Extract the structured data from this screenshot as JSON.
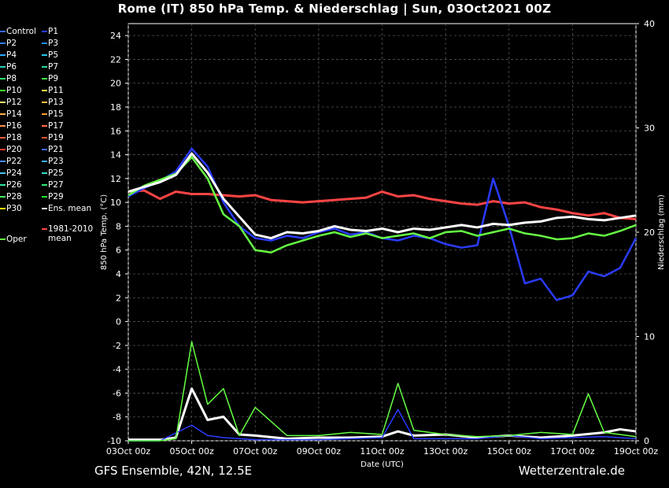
{
  "title": "Rome  (IT)  850 hPa Temp. & Niederschlag | Sun, 03Oct2021 00Z",
  "footer": {
    "left": "GFS Ensemble, 42N, 12.5E",
    "right": "Wetterzentrale.de"
  },
  "legend": [
    {
      "label": "Control",
      "color": "#3a6bff"
    },
    {
      "label": "P1",
      "color": "#2a3cff"
    },
    {
      "label": "P2",
      "color": "#2f7cff"
    },
    {
      "label": "P3",
      "color": "#1e90ff"
    },
    {
      "label": "P4",
      "color": "#2aa8ff"
    },
    {
      "label": "P5",
      "color": "#1cc4e6"
    },
    {
      "label": "P6",
      "color": "#22d2b8"
    },
    {
      "label": "P7",
      "color": "#22dd99"
    },
    {
      "label": "P8",
      "color": "#2ee070"
    },
    {
      "label": "P9",
      "color": "#3de84a"
    },
    {
      "label": "P10",
      "color": "#38f028"
    },
    {
      "label": "P11",
      "color": "#f5f542"
    },
    {
      "label": "P12",
      "color": "#f0e070"
    },
    {
      "label": "P13",
      "color": "#ffc040"
    },
    {
      "label": "P14",
      "color": "#ffb04a"
    },
    {
      "label": "P15",
      "color": "#ff9a2a"
    },
    {
      "label": "P16",
      "color": "#ff8c50"
    },
    {
      "label": "P17",
      "color": "#ff7040"
    },
    {
      "label": "P18",
      "color": "#ff5a3a"
    },
    {
      "label": "P19",
      "color": "#e8502a"
    },
    {
      "label": "P20",
      "color": "#ff3a30"
    },
    {
      "label": "P21",
      "color": "#3f6cff"
    },
    {
      "label": "P22",
      "color": "#4a8cff"
    },
    {
      "label": "P23",
      "color": "#3ab0ff"
    },
    {
      "label": "P24",
      "color": "#40c8f0"
    },
    {
      "label": "P25",
      "color": "#30e0c0"
    },
    {
      "label": "P26",
      "color": "#30e8a0"
    },
    {
      "label": "P27",
      "color": "#30e878"
    },
    {
      "label": "P28",
      "color": "#40f060"
    },
    {
      "label": "P29",
      "color": "#20f030"
    },
    {
      "label": "P30",
      "color": "#ffee00"
    },
    {
      "label": "Ens. mean",
      "color": "#ffffff"
    },
    {
      "label": "Oper",
      "color": "#66ff44"
    },
    {
      "label": "1981-2010 mean",
      "color": "#ff4444"
    }
  ],
  "chart_data": {
    "type": "line",
    "title": "Rome  (IT)  850 hPa Temp. & Niederschlag | Sun, 03Oct2021 00Z",
    "xlabel": "Date (UTC)",
    "ylabel_left": "850 hPa Temp. (°C)",
    "ylabel_right": "Niederschlag (mm)",
    "x_ticks": [
      "03Oct 00z",
      "05Oct 00z",
      "07Oct 00z",
      "09Oct 00z",
      "11Oct 00z",
      "13Oct 00z",
      "15Oct 00z",
      "17Oct 00z",
      "19Oct 00z"
    ],
    "x_range_days": [
      0,
      16
    ],
    "ylim_left": [
      -10,
      25
    ],
    "ylim_right": [
      0,
      40
    ],
    "y_ticks_left": [
      24,
      22,
      20,
      18,
      16,
      14,
      12,
      10,
      8,
      6,
      4,
      2,
      0,
      -2,
      -4,
      -6,
      -8,
      -10
    ],
    "y_ticks_right": [
      40,
      30,
      20,
      10,
      0
    ],
    "grid": true,
    "series": [
      {
        "name": "Ens. mean",
        "color": "#ffffff",
        "values": [
          [
            0,
            10.9
          ],
          [
            0.5,
            11.3
          ],
          [
            1,
            11.7
          ],
          [
            1.5,
            12.3
          ],
          [
            2,
            14.1
          ],
          [
            2.5,
            12.5
          ],
          [
            3,
            10.3
          ],
          [
            3.5,
            8.8
          ],
          [
            4,
            7.3
          ],
          [
            4.5,
            7.0
          ],
          [
            5,
            7.5
          ],
          [
            5.5,
            7.4
          ],
          [
            6,
            7.6
          ],
          [
            6.5,
            8.0
          ],
          [
            7,
            7.7
          ],
          [
            7.5,
            7.6
          ],
          [
            8,
            7.8
          ],
          [
            8.5,
            7.5
          ],
          [
            9,
            7.8
          ],
          [
            9.5,
            7.7
          ],
          [
            10,
            7.9
          ],
          [
            10.5,
            8.1
          ],
          [
            11,
            7.9
          ],
          [
            11.5,
            8.2
          ],
          [
            12,
            8.1
          ],
          [
            12.5,
            8.3
          ],
          [
            13,
            8.4
          ],
          [
            13.5,
            8.7
          ],
          [
            14,
            8.8
          ],
          [
            14.5,
            8.6
          ],
          [
            15,
            8.5
          ],
          [
            15.5,
            8.7
          ],
          [
            16,
            8.9
          ]
        ]
      },
      {
        "name": "1981-2010 mean",
        "color": "#ff4444",
        "values": [
          [
            0,
            10.9
          ],
          [
            0.5,
            11.0
          ],
          [
            1,
            10.3
          ],
          [
            1.5,
            10.9
          ],
          [
            2,
            10.7
          ],
          [
            2.5,
            10.7
          ],
          [
            3,
            10.6
          ],
          [
            3.5,
            10.5
          ],
          [
            4,
            10.6
          ],
          [
            4.5,
            10.2
          ],
          [
            5,
            10.1
          ],
          [
            5.5,
            10.0
          ],
          [
            6,
            10.1
          ],
          [
            6.5,
            10.2
          ],
          [
            7,
            10.3
          ],
          [
            7.5,
            10.4
          ],
          [
            8,
            10.9
          ],
          [
            8.5,
            10.5
          ],
          [
            9,
            10.6
          ],
          [
            9.5,
            10.3
          ],
          [
            10,
            10.1
          ],
          [
            10.5,
            9.9
          ],
          [
            11,
            9.8
          ],
          [
            11.5,
            10.1
          ],
          [
            12,
            9.9
          ],
          [
            12.5,
            10.0
          ],
          [
            13,
            9.6
          ],
          [
            13.5,
            9.4
          ],
          [
            14,
            9.1
          ],
          [
            14.5,
            8.9
          ],
          [
            15,
            9.1
          ],
          [
            15.5,
            8.7
          ],
          [
            16,
            8.6
          ]
        ]
      },
      {
        "name": "Oper",
        "color": "#66ff44",
        "values": [
          [
            0,
            10.6
          ],
          [
            0.5,
            11.4
          ],
          [
            1,
            11.9
          ],
          [
            1.5,
            12.4
          ],
          [
            2,
            13.8
          ],
          [
            2.5,
            12.0
          ],
          [
            3,
            9.0
          ],
          [
            3.5,
            8.0
          ],
          [
            4,
            6.0
          ],
          [
            4.5,
            5.8
          ],
          [
            5,
            6.4
          ],
          [
            5.5,
            6.8
          ],
          [
            6,
            7.2
          ],
          [
            6.5,
            7.5
          ],
          [
            7,
            7.1
          ],
          [
            7.5,
            7.4
          ],
          [
            8,
            7.0
          ],
          [
            8.5,
            7.2
          ],
          [
            9,
            7.4
          ],
          [
            9.5,
            7.0
          ],
          [
            10,
            7.5
          ],
          [
            10.5,
            7.6
          ],
          [
            11,
            7.2
          ],
          [
            11.5,
            7.5
          ],
          [
            12,
            7.8
          ],
          [
            12.5,
            7.4
          ],
          [
            13,
            7.2
          ],
          [
            13.5,
            6.9
          ],
          [
            14,
            7.0
          ],
          [
            14.5,
            7.4
          ],
          [
            15,
            7.2
          ],
          [
            15.5,
            7.6
          ],
          [
            16,
            8.1
          ]
        ]
      },
      {
        "name": "P1",
        "color": "#2a3cff",
        "values": [
          [
            0,
            10.5
          ],
          [
            0.5,
            11.2
          ],
          [
            1,
            11.8
          ],
          [
            1.5,
            12.6
          ],
          [
            2,
            14.5
          ],
          [
            2.5,
            13.0
          ],
          [
            3,
            10.0
          ],
          [
            3.5,
            8.0
          ],
          [
            4,
            7.0
          ],
          [
            4.5,
            6.8
          ],
          [
            5,
            7.2
          ],
          [
            5.5,
            7.0
          ],
          [
            6,
            7.5
          ],
          [
            6.5,
            7.8
          ],
          [
            7,
            7.3
          ],
          [
            7.5,
            7.5
          ],
          [
            8,
            7.0
          ],
          [
            8.5,
            6.8
          ],
          [
            9,
            7.2
          ],
          [
            9.5,
            7.0
          ],
          [
            10,
            6.5
          ],
          [
            10.5,
            6.2
          ],
          [
            11,
            6.4
          ],
          [
            11.5,
            12.0
          ],
          [
            12,
            8.0
          ],
          [
            12.5,
            3.2
          ],
          [
            13,
            3.6
          ],
          [
            13.5,
            1.8
          ],
          [
            14,
            2.2
          ],
          [
            14.5,
            4.2
          ],
          [
            15,
            3.8
          ],
          [
            15.5,
            4.5
          ],
          [
            16,
            7.0
          ]
        ]
      }
    ],
    "precip_series": [
      {
        "name": "Ens. mean",
        "color": "#ffffff",
        "values": [
          [
            0,
            0.1
          ],
          [
            1,
            0.1
          ],
          [
            1.5,
            0.3
          ],
          [
            2,
            5.0
          ],
          [
            2.5,
            2.0
          ],
          [
            3,
            2.3
          ],
          [
            3.5,
            0.6
          ],
          [
            4,
            0.5
          ],
          [
            5,
            0.2
          ],
          [
            6,
            0.3
          ],
          [
            7,
            0.3
          ],
          [
            8,
            0.4
          ],
          [
            8.5,
            0.9
          ],
          [
            9,
            0.5
          ],
          [
            10,
            0.6
          ],
          [
            11,
            0.3
          ],
          [
            12,
            0.5
          ],
          [
            13,
            0.3
          ],
          [
            14,
            0.5
          ],
          [
            15,
            0.8
          ],
          [
            15.5,
            1.1
          ],
          [
            16,
            0.9
          ]
        ]
      },
      {
        "name": "P1",
        "color": "#2a3cff",
        "values": [
          [
            0,
            0
          ],
          [
            1,
            0
          ],
          [
            2,
            1.5
          ],
          [
            2.5,
            0.5
          ],
          [
            3,
            0.3
          ],
          [
            4,
            0.1
          ],
          [
            5,
            0.1
          ],
          [
            6,
            0.1
          ],
          [
            7,
            0.2
          ],
          [
            8,
            0.3
          ],
          [
            8.5,
            3.0
          ],
          [
            9,
            0.2
          ],
          [
            10,
            0.2
          ],
          [
            11,
            0.2
          ],
          [
            12,
            0.5
          ],
          [
            13,
            0.2
          ],
          [
            14,
            0.3
          ],
          [
            15,
            0.4
          ],
          [
            16,
            0.2
          ]
        ]
      },
      {
        "name": "Oper",
        "color": "#66ff44",
        "values": [
          [
            0,
            0
          ],
          [
            1,
            0
          ],
          [
            1.5,
            0.2
          ],
          [
            2,
            9.5
          ],
          [
            2.5,
            3.5
          ],
          [
            3,
            5.0
          ],
          [
            3.5,
            0.5
          ],
          [
            4,
            3.2
          ],
          [
            5,
            0.5
          ],
          [
            6,
            0.5
          ],
          [
            7,
            0.8
          ],
          [
            8,
            0.6
          ],
          [
            8.5,
            5.5
          ],
          [
            9,
            1.0
          ],
          [
            10,
            0.6
          ],
          [
            11,
            0.4
          ],
          [
            12,
            0.5
          ],
          [
            13,
            0.8
          ],
          [
            14,
            0.6
          ],
          [
            14.5,
            4.5
          ],
          [
            15,
            0.8
          ],
          [
            16,
            0.4
          ]
        ]
      }
    ]
  }
}
